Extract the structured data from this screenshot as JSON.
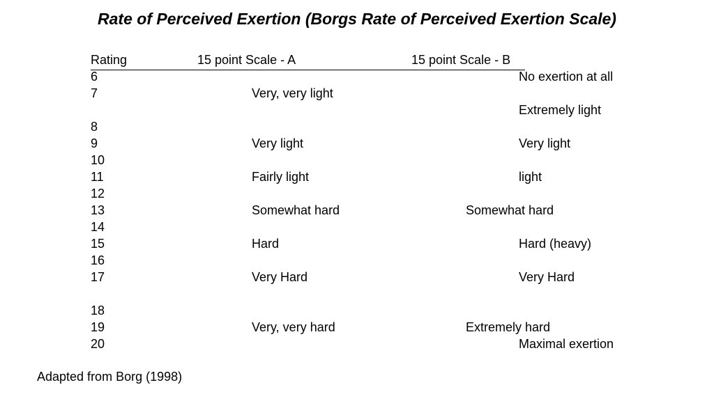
{
  "title": "Rate of Perceived Exertion (Borgs Rate of Perceived Exertion Scale)",
  "headers": {
    "rating": "Rating",
    "scale_a": "15 point Scale - A",
    "scale_b": "15 point  Scale - B"
  },
  "rows": [
    {
      "rating": "6",
      "a": "",
      "b": "No exertion at all",
      "b_indent": true
    },
    {
      "rating": "7",
      "a": "Very, very light",
      "b": "",
      "b_indent": true
    },
    {
      "rating": "",
      "a": "",
      "b": "Extremely light",
      "b_indent": true
    },
    {
      "rating": "8",
      "a": "",
      "b": "",
      "b_indent": true
    },
    {
      "rating": "9",
      "a": "Very light",
      "b": "Very light",
      "b_indent": true
    },
    {
      "rating": "10",
      "a": "",
      "b": "",
      "b_indent": true
    },
    {
      "rating": "11",
      "a": "Fairly light",
      "b": "light",
      "b_indent": true
    },
    {
      "rating": "12",
      "a": "",
      "b": "",
      "b_indent": true
    },
    {
      "rating": "13",
      "a": "Somewhat hard",
      "b": "Somewhat hard",
      "b_indent": false
    },
    {
      "rating": "14",
      "a": "",
      "b": "",
      "b_indent": true
    },
    {
      "rating": "15",
      "a": "Hard",
      "b": "Hard (heavy)",
      "b_indent": true
    },
    {
      "rating": "16",
      "a": "",
      "b": "",
      "b_indent": true
    },
    {
      "rating": "17",
      "a": "Very Hard",
      "b": "Very Hard",
      "b_indent": true
    },
    {
      "rating": "",
      "a": "",
      "b": "",
      "b_indent": true
    },
    {
      "rating": "18",
      "a": "",
      "b": "",
      "b_indent": true
    },
    {
      "rating": "19",
      "a": "Very, very hard",
      "b": "Extremely hard",
      "b_indent": false
    },
    {
      "rating": "20",
      "a": "",
      "b": "Maximal exertion",
      "b_indent": true
    }
  ],
  "footer": "Adapted from Borg (1998)"
}
